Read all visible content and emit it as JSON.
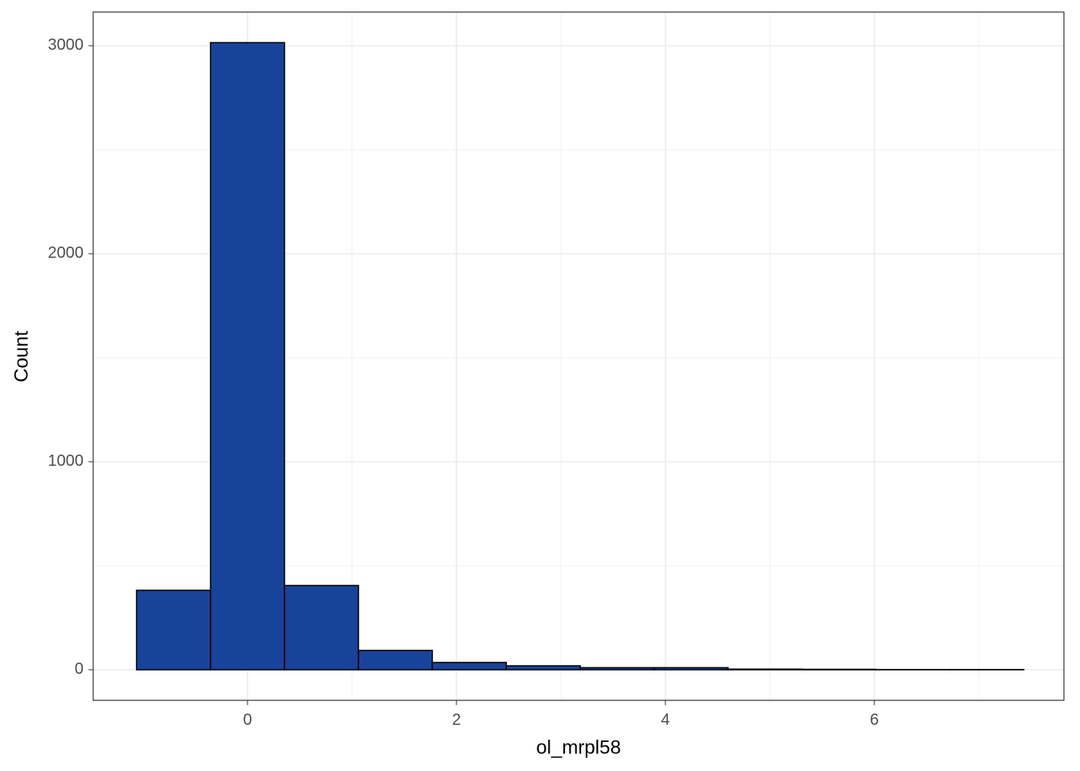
{
  "chart_data": {
    "type": "histogram",
    "x_label": "ol_mrpl58",
    "y_label": "Count",
    "bins": [
      -1.062,
      -0.354,
      0.354,
      1.062,
      1.769,
      2.477,
      3.185,
      3.892,
      4.6,
      5.308,
      6.015,
      6.723,
      7.431
    ],
    "values": [
      382,
      3015,
      405,
      93,
      35,
      19,
      10,
      10,
      3,
      2,
      1,
      1
    ],
    "color": "#18439a",
    "edge_color": "#000000",
    "xlim": [
      -1.477,
      7.815
    ],
    "ylim": [
      -147,
      3162
    ],
    "xticks": [
      0,
      2,
      4,
      6
    ],
    "yticks": [
      0,
      1000,
      2000,
      3000
    ],
    "x_minor_ticks": [
      1,
      3,
      5,
      7
    ],
    "y_minor_ticks": [
      500,
      1500,
      2500
    ],
    "grid": true
  }
}
